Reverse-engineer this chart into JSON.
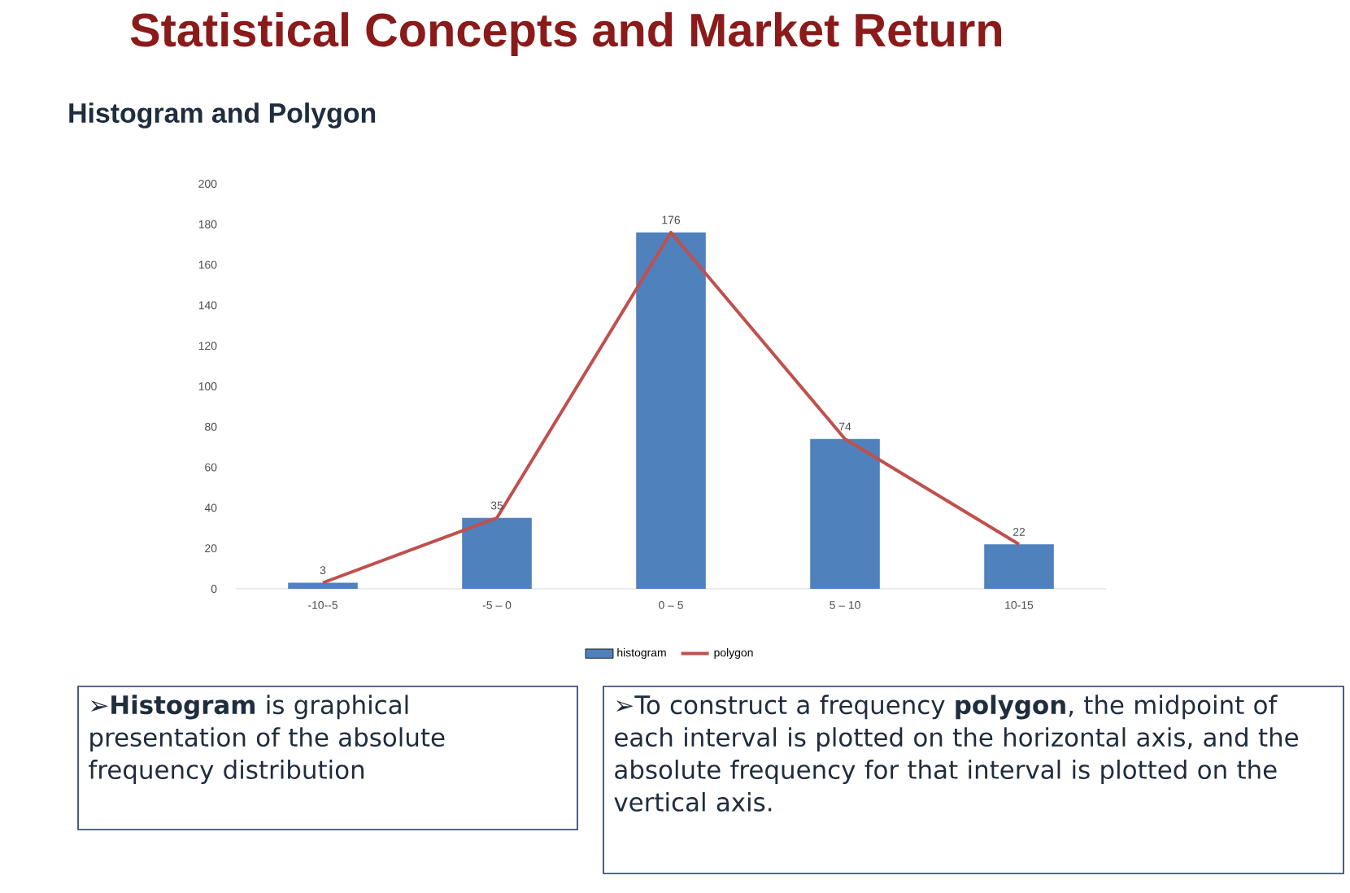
{
  "chart_data": {
    "type": "bar",
    "title": "Statistical Concepts and Market Return",
    "subtitle": "Histogram and Polygon",
    "categories": [
      "-10--5",
      "-5 – 0",
      "0 – 5",
      "5 – 10",
      "10-15"
    ],
    "series": [
      {
        "name": "histogram",
        "color": "#4f81bd",
        "values": [
          3,
          35,
          176,
          74,
          22
        ],
        "value_labels": [
          "3",
          "35",
          "176",
          "74",
          "22"
        ]
      },
      {
        "name": "polygon",
        "type": "line",
        "color": "#c0504d",
        "values": [
          3,
          35,
          176,
          74,
          22
        ]
      }
    ],
    "ylim": [
      0,
      200
    ],
    "yticks": [
      0,
      20,
      40,
      60,
      80,
      100,
      120,
      140,
      160,
      180,
      200
    ],
    "legend": "bottom",
    "marker": "none",
    "line_style": "solid",
    "grid": false,
    "annotations": [
      "➢**Histogram** is graphical presentation of the absolute frequency distribution",
      "➢To construct a frequency **polygon**, the midpoint of each interval is plotted on the horizontal axis, and the absolute frequency for that interval is plotted on the vertical axis."
    ]
  }
}
